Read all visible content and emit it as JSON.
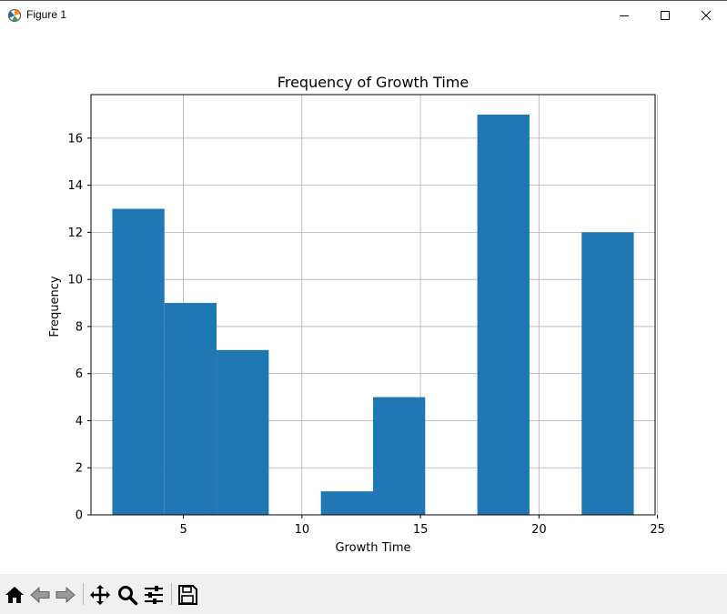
{
  "window": {
    "title": "Figure 1",
    "icon": "matplotlib-figure-icon",
    "controls": [
      "minimize-icon",
      "maximize-icon",
      "close-icon"
    ]
  },
  "toolbar": {
    "tools": [
      "home-icon",
      "back-icon",
      "forward-icon",
      "pan-icon",
      "zoom-icon",
      "configure-subplots-icon",
      "save-icon"
    ]
  },
  "chart_data": {
    "type": "bar",
    "title": "Frequency of Growth Time",
    "xlabel": "Growth Time",
    "ylabel": "Frequency",
    "bin_edges": [
      2.0,
      4.2,
      6.4,
      8.6,
      10.8,
      13.0,
      15.2,
      17.4,
      19.6,
      21.8,
      24.0
    ],
    "values": [
      13,
      9,
      7,
      0,
      1,
      5,
      0,
      17,
      0,
      12
    ],
    "xlim": [
      1.1,
      24.9
    ],
    "ylim": [
      0,
      17.85
    ],
    "xticks": [
      5,
      10,
      15,
      20,
      25
    ],
    "yticks": [
      0,
      2,
      4,
      6,
      8,
      10,
      12,
      14,
      16
    ],
    "grid": true,
    "bar_color": "#1f77b4"
  }
}
